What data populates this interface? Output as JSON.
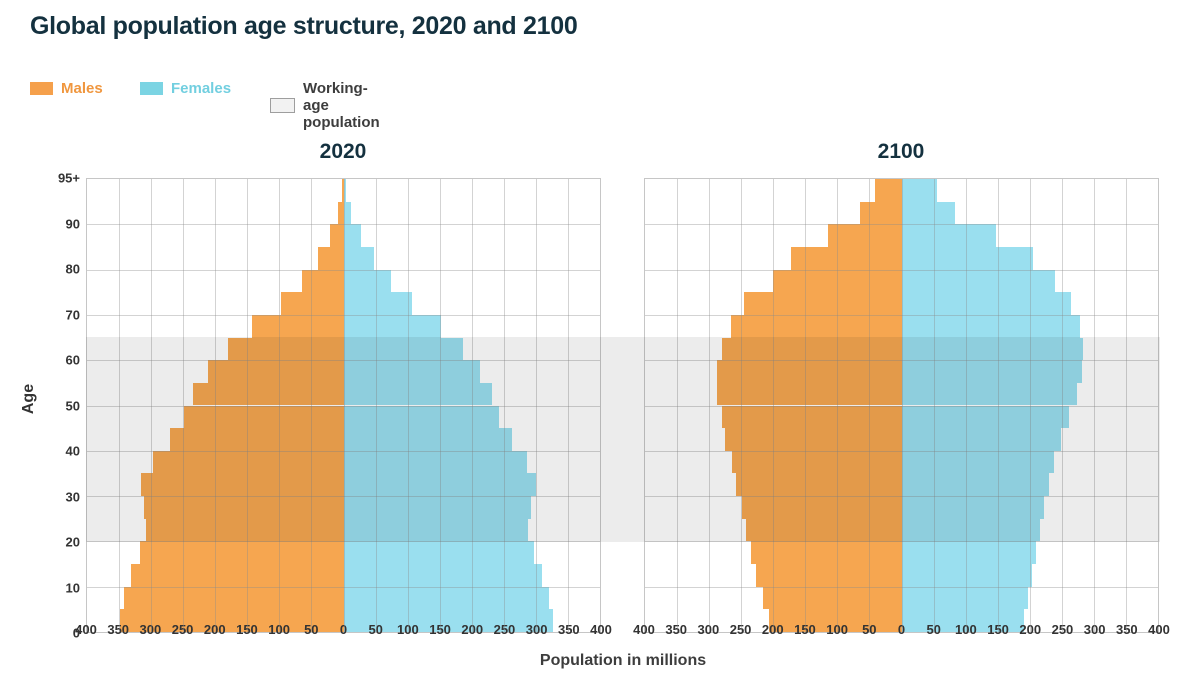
{
  "title": "Global population age structure, 2020 and 2100",
  "legend": {
    "items": [
      {
        "id": "males",
        "label": "Males",
        "swatch_color": "#F5A04B",
        "text_color": "#F0973F"
      },
      {
        "id": "females",
        "label": "Females",
        "swatch_color": "#7BD4E3",
        "text_color": "#72CFE0"
      },
      {
        "id": "working_age",
        "label": "Working-age population",
        "swatch_color": "#F2F2F2",
        "swatch_border": "#9E9E9E",
        "text_color": "#3d3d3d"
      }
    ]
  },
  "colors": {
    "male_bar": "#F6A650",
    "female_bar": "#9ADFEF",
    "working_age_band": "#ECECEC",
    "grid": "#CCCCCC",
    "title_text": "#14313F",
    "axis_text": "#333333"
  },
  "axes": {
    "y_title": "Age",
    "x_title": "Population in millions",
    "y_tick_labels": [
      {
        "label": "95+",
        "age": 100
      },
      {
        "label": "90",
        "age": 90
      },
      {
        "label": "80",
        "age": 80
      },
      {
        "label": "70",
        "age": 70
      },
      {
        "label": "60",
        "age": 60
      },
      {
        "label": "50",
        "age": 50
      },
      {
        "label": "40",
        "age": 40
      },
      {
        "label": "30",
        "age": 30
      },
      {
        "label": "20",
        "age": 20
      },
      {
        "label": "10",
        "age": 10
      },
      {
        "label": "0",
        "age": 0
      }
    ],
    "x_tick_labels": [
      "400",
      "350",
      "300",
      "250",
      "200",
      "150",
      "100",
      "50",
      "0",
      "50",
      "100",
      "150",
      "200",
      "250",
      "300",
      "350",
      "400"
    ],
    "x_max_each_side": 400,
    "working_age_band_ages": {
      "from": 20,
      "to": 65
    }
  },
  "chart_data": [
    {
      "type": "bar",
      "subtype": "population-pyramid",
      "title": "2020",
      "unit": "millions",
      "age_groups": [
        "0-4",
        "5-9",
        "10-14",
        "15-19",
        "20-24",
        "25-29",
        "30-34",
        "35-39",
        "40-44",
        "45-49",
        "50-54",
        "55-59",
        "60-64",
        "65-69",
        "70-74",
        "75-79",
        "80-84",
        "85-89",
        "90-94",
        "95+"
      ],
      "series": [
        {
          "name": "Males",
          "side": "left",
          "values": [
            349,
            342,
            331,
            318,
            308,
            311,
            316,
            297,
            270,
            249,
            235,
            212,
            180,
            143,
            97,
            64,
            40,
            21,
            9,
            2
          ]
        },
        {
          "name": "Females",
          "side": "right",
          "values": [
            327,
            320,
            309,
            297,
            288,
            292,
            300,
            286,
            262,
            243,
            232,
            213,
            186,
            152,
            107,
            74,
            48,
            28,
            12,
            4
          ]
        }
      ],
      "xlim": [
        -400,
        400
      ],
      "grid": true,
      "x_step": 50
    },
    {
      "type": "bar",
      "subtype": "population-pyramid",
      "title": "2100",
      "unit": "millions",
      "age_groups": [
        "0-4",
        "5-9",
        "10-14",
        "15-19",
        "20-24",
        "25-29",
        "30-34",
        "35-39",
        "40-44",
        "45-49",
        "50-54",
        "55-59",
        "60-64",
        "65-69",
        "70-74",
        "75-79",
        "80-84",
        "85-89",
        "90-94",
        "95+"
      ],
      "series": [
        {
          "name": "Males",
          "side": "left",
          "values": [
            206,
            216,
            227,
            234,
            242,
            248,
            258,
            265,
            275,
            280,
            287,
            288,
            280,
            266,
            246,
            200,
            172,
            115,
            64,
            42
          ]
        },
        {
          "name": "Females",
          "side": "right",
          "values": [
            191,
            197,
            203,
            209,
            216,
            223,
            230,
            238,
            248,
            261,
            273,
            281,
            283,
            278,
            265,
            240,
            205,
            147,
            83,
            55
          ]
        }
      ],
      "xlim": [
        -400,
        400
      ],
      "grid": true,
      "x_step": 50
    }
  ]
}
